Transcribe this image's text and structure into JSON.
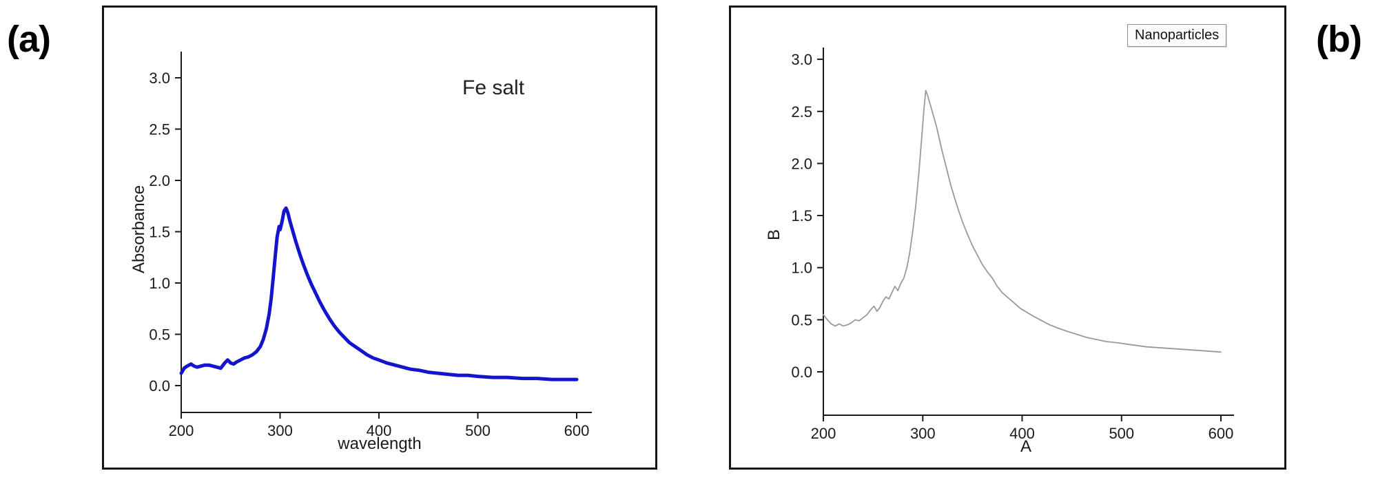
{
  "figure": {
    "background": "#ffffff",
    "panels": [
      {
        "id": "a",
        "label": "(a)",
        "annotation": "Fe salt",
        "chart_data": {
          "type": "line",
          "title": "",
          "xlabel": "wavelength",
          "ylabel": "Absorbance",
          "xlim": [
            200,
            600
          ],
          "ylim": [
            0,
            3.25
          ],
          "xticks": [
            200,
            300,
            400,
            500,
            600
          ],
          "xtick_labels": [
            "200",
            "300",
            "400",
            "500",
            "600"
          ],
          "yticks": [
            0,
            0.5,
            1,
            1.5,
            2,
            2.5,
            3
          ],
          "ytick_labels": [
            "0.0",
            "0.5",
            "1.0",
            "1.5",
            "2.0",
            "2.5",
            "3.0"
          ],
          "grid": false,
          "legend_position": "none",
          "axis_color": "#1a1a1a",
          "x": [
            200,
            203,
            206,
            210,
            213,
            216,
            220,
            224,
            228,
            232,
            236,
            240,
            244,
            247,
            250,
            253,
            256,
            260,
            264,
            268,
            272,
            276,
            280,
            283,
            286,
            289,
            291,
            293,
            295,
            297,
            299,
            300,
            302,
            304,
            306,
            308,
            310,
            313,
            316,
            320,
            324,
            328,
            332,
            336,
            340,
            345,
            350,
            355,
            360,
            365,
            370,
            376,
            382,
            388,
            394,
            400,
            408,
            416,
            424,
            432,
            440,
            450,
            460,
            470,
            480,
            490,
            500,
            515,
            530,
            545,
            560,
            575,
            590,
            600
          ],
          "series": [
            {
              "name": "Fe salt",
              "color": "#1414cc",
              "stroke_width": 5,
              "values": [
                0.12,
                0.17,
                0.19,
                0.21,
                0.19,
                0.18,
                0.19,
                0.2,
                0.2,
                0.19,
                0.18,
                0.17,
                0.22,
                0.25,
                0.22,
                0.21,
                0.23,
                0.25,
                0.27,
                0.28,
                0.3,
                0.33,
                0.38,
                0.45,
                0.55,
                0.7,
                0.85,
                1.05,
                1.25,
                1.45,
                1.55,
                1.52,
                1.6,
                1.7,
                1.73,
                1.68,
                1.6,
                1.5,
                1.4,
                1.28,
                1.17,
                1.07,
                0.98,
                0.9,
                0.82,
                0.73,
                0.65,
                0.58,
                0.52,
                0.47,
                0.42,
                0.38,
                0.34,
                0.3,
                0.27,
                0.25,
                0.22,
                0.2,
                0.18,
                0.16,
                0.15,
                0.13,
                0.12,
                0.11,
                0.1,
                0.1,
                0.09,
                0.08,
                0.08,
                0.07,
                0.07,
                0.06,
                0.06,
                0.06
              ]
            }
          ]
        }
      },
      {
        "id": "b",
        "label": "(b)",
        "legend": "Nanoparticles",
        "chart_data": {
          "type": "line",
          "title": "",
          "xlabel": "A",
          "ylabel": "B",
          "xlim": [
            200,
            600
          ],
          "ylim": [
            -0.4,
            3.25
          ],
          "xticks": [
            200,
            300,
            400,
            500,
            600
          ],
          "xtick_labels": [
            "200",
            "300",
            "400",
            "500",
            "600"
          ],
          "yticks": [
            0,
            0.5,
            1,
            1.5,
            2,
            2.5,
            3
          ],
          "ytick_labels": [
            "0.0",
            "0.5",
            "1.0",
            "1.5",
            "2.0",
            "2.5",
            "3.0"
          ],
          "grid": false,
          "legend_position": "top-right",
          "axis_color": "#1a1a1a",
          "x": [
            200,
            204,
            208,
            212,
            216,
            220,
            224,
            228,
            232,
            236,
            240,
            244,
            248,
            251,
            254,
            257,
            260,
            263,
            266,
            269,
            272,
            275,
            278,
            281,
            284,
            287,
            290,
            293,
            296,
            299,
            301,
            303,
            305,
            308,
            311,
            314,
            317,
            320,
            324,
            328,
            332,
            336,
            340,
            345,
            350,
            355,
            360,
            365,
            370,
            375,
            380,
            386,
            392,
            398,
            405,
            412,
            420,
            428,
            436,
            445,
            455,
            465,
            475,
            485,
            495,
            510,
            525,
            540,
            555,
            570,
            585,
            600
          ],
          "series": [
            {
              "name": "Nanoparticles",
              "color": "#999999",
              "stroke_width": 1.8,
              "values": [
                0.55,
                0.5,
                0.46,
                0.44,
                0.46,
                0.44,
                0.45,
                0.47,
                0.5,
                0.49,
                0.52,
                0.55,
                0.6,
                0.63,
                0.58,
                0.62,
                0.68,
                0.72,
                0.7,
                0.76,
                0.82,
                0.78,
                0.85,
                0.9,
                1.0,
                1.15,
                1.35,
                1.6,
                1.9,
                2.25,
                2.5,
                2.7,
                2.65,
                2.55,
                2.45,
                2.35,
                2.22,
                2.1,
                1.95,
                1.8,
                1.67,
                1.55,
                1.44,
                1.32,
                1.21,
                1.12,
                1.03,
                0.96,
                0.9,
                0.82,
                0.76,
                0.71,
                0.66,
                0.61,
                0.57,
                0.53,
                0.49,
                0.45,
                0.42,
                0.39,
                0.36,
                0.33,
                0.31,
                0.29,
                0.28,
                0.26,
                0.24,
                0.23,
                0.22,
                0.21,
                0.2,
                0.19
              ]
            }
          ]
        }
      }
    ]
  }
}
